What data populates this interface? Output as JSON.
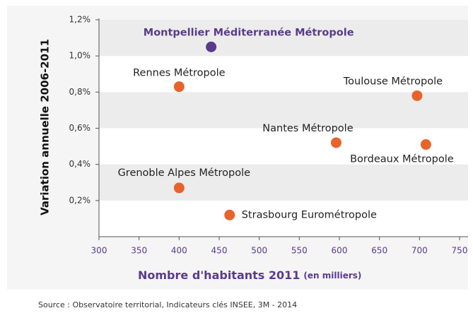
{
  "chart_data": {
    "type": "scatter",
    "x_label": "Nombre d'habitants 2011",
    "x_label_unit": "(en milliers)",
    "y_label": "Variation annuelle 2006-2011",
    "source": "Source : Observatoire territorial, Indicateurs clés INSEE, 3M - 2014",
    "xlim": [
      300,
      750
    ],
    "xticks": [
      300,
      350,
      400,
      450,
      500,
      550,
      600,
      650,
      700,
      750
    ],
    "ylim": [
      0,
      1.2
    ],
    "yticks": [
      {
        "value": 0.2,
        "label": "0,2%"
      },
      {
        "value": 0.4,
        "label": "0,4%"
      },
      {
        "value": 0.6,
        "label": "0,6%"
      },
      {
        "value": 0.8,
        "label": "0,8%"
      },
      {
        "value": 1.0,
        "label": "1,0%"
      },
      {
        "value": 1.2,
        "label": "1,2%"
      }
    ],
    "labels": [
      "Montpellier Méditerranée Métropole",
      "Rennes Métropole",
      "Toulouse Métropole",
      "Nantes Métropole",
      "Bordeaux Métropole",
      "Grenoble Alpes Métropole",
      "Strasbourg Eurométropole"
    ],
    "x": [
      440,
      400,
      697,
      596,
      708,
      400,
      463
    ],
    "values": [
      1.05,
      0.83,
      0.78,
      0.52,
      0.51,
      0.27,
      0.12
    ],
    "colors": [
      "#5b3a8c",
      "#e8632b",
      "#e8632b",
      "#e8632b",
      "#e8632b",
      "#e8632b",
      "#e8632b"
    ],
    "label_colors": [
      "#5b3a8c",
      "#222222",
      "#222222",
      "#222222",
      "#222222",
      "#222222",
      "#222222"
    ],
    "axis_color": "#5b3a8c"
  }
}
